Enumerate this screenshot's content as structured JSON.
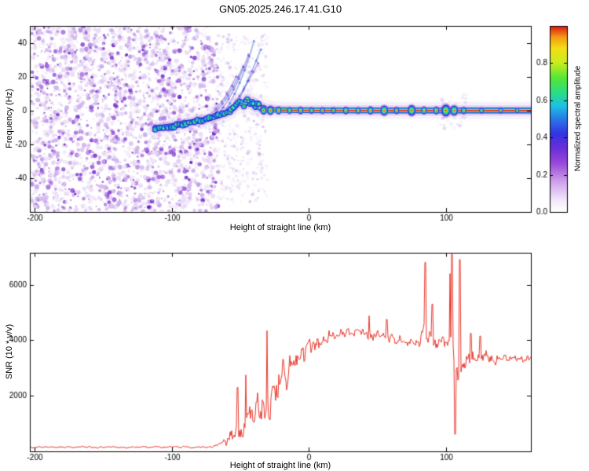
{
  "figure": {
    "title": "GN05.2025.246.17.41.G10",
    "background": "#ffffff"
  },
  "chart_data": [
    {
      "type": "heatmap",
      "title": "GN05.2025.246.17.41.G10",
      "xlabel": "Height of straight line (km)",
      "ylabel": "Frequency (Hz)",
      "xlim": [
        -203.5,
        162
      ],
      "ylim": [
        -60,
        50
      ],
      "xticks": [
        -200,
        -100,
        0,
        100
      ],
      "yticks": [
        -40,
        -20,
        0,
        20,
        40
      ],
      "colorbar": {
        "label": "Normalized spectral amplitude",
        "ticks": [
          "0.0",
          "0.2",
          "0.4",
          "0.6",
          "0.8"
        ],
        "tick_values": [
          0,
          0.2,
          0.4,
          0.6,
          0.8
        ],
        "range": [
          0,
          1
        ],
        "gradient": [
          [
            0,
            "#ffffff"
          ],
          [
            0.06,
            "#f3eaf9"
          ],
          [
            0.16,
            "#cfa3ec"
          ],
          [
            0.26,
            "#9a4ad9"
          ],
          [
            0.34,
            "#6b2fd9"
          ],
          [
            0.42,
            "#3333e2"
          ],
          [
            0.5,
            "#2879e8"
          ],
          [
            0.57,
            "#1cc2e2"
          ],
          [
            0.64,
            "#2add85"
          ],
          [
            0.72,
            "#55e636"
          ],
          [
            0.8,
            "#c8ee20"
          ],
          [
            0.88,
            "#f4de16"
          ],
          [
            0.94,
            "#f29a12"
          ],
          [
            1,
            "#e01212"
          ]
        ]
      },
      "noise_region": {
        "x_range": [
          -203.5,
          -66
        ],
        "y_range": [
          -60,
          50
        ],
        "count": 2800,
        "palette": [
          "#e8d9f5",
          "#c9a8ea",
          "#a166dd",
          "#7d2ed0",
          "#5e0fc0"
        ]
      },
      "sparse_region": {
        "x_range": [
          -66,
          -30
        ],
        "count": 420
      },
      "disturbance": {
        "x_range": [
          96,
          116
        ],
        "count": 70
      },
      "track": {
        "points": [
          [
            -112,
            -10.5
          ],
          [
            -105,
            -10
          ],
          [
            -98,
            -9
          ],
          [
            -92,
            -8
          ],
          [
            -86,
            -7
          ],
          [
            -80,
            -6
          ],
          [
            -74,
            -5
          ],
          [
            -68,
            -3.5
          ],
          [
            -62,
            -2
          ],
          [
            -57,
            0
          ],
          [
            -53,
            3
          ],
          [
            -50,
            6
          ],
          [
            -47,
            2
          ],
          [
            -45,
            8
          ],
          [
            -43,
            3
          ],
          [
            -41,
            6
          ],
          [
            -39,
            1
          ],
          [
            -37,
            4
          ],
          [
            -35,
            0.5
          ],
          [
            -33,
            2
          ],
          [
            -31,
            0
          ],
          [
            -28,
            1
          ],
          [
            -25,
            0
          ],
          [
            162,
            0
          ]
        ],
        "flat_from": -30
      },
      "arcs": [
        [
          [
            -76,
            -6
          ],
          [
            -62,
            4
          ],
          [
            -53,
            20
          ]
        ],
        [
          [
            -71,
            -4
          ],
          [
            -58,
            7
          ],
          [
            -48,
            26
          ]
        ],
        [
          [
            -66,
            -2
          ],
          [
            -54,
            10
          ],
          [
            -44,
            33
          ]
        ],
        [
          [
            -61,
            0
          ],
          [
            -50,
            13
          ],
          [
            -40,
            41
          ]
        ],
        [
          [
            -57,
            1
          ],
          [
            -47,
            12
          ],
          [
            -37,
            28
          ]
        ],
        [
          [
            -53,
            3
          ],
          [
            -45,
            16
          ],
          [
            -35,
            36
          ]
        ]
      ],
      "blobs": [
        [
          -33,
          2.6
        ],
        [
          -28,
          2.8
        ],
        [
          -22,
          2.4
        ],
        [
          -14,
          2.1
        ],
        [
          -6,
          2.3
        ],
        [
          2,
          2.0
        ],
        [
          10,
          2.1
        ],
        [
          18,
          2.0
        ],
        [
          27,
          2.3
        ],
        [
          36,
          2.1
        ],
        [
          45,
          2.5
        ],
        [
          55,
          3.2
        ],
        [
          64,
          2.2
        ],
        [
          75,
          3.4
        ],
        [
          84,
          2.4
        ],
        [
          93,
          2.4
        ],
        [
          100,
          3.8
        ],
        [
          106,
          3.2
        ],
        [
          113,
          2.2
        ],
        [
          126,
          1.9
        ],
        [
          140,
          1.9
        ],
        [
          152,
          1.7
        ]
      ]
    },
    {
      "type": "line",
      "xlabel": "Height of straight line (km)",
      "ylabel": "SNR (10 * v/v)",
      "xlim": [
        -203.5,
        162
      ],
      "ylim": [
        0,
        7150
      ],
      "xticks": [
        -200,
        -100,
        0,
        100
      ],
      "yticks": [
        2000,
        4000,
        6000
      ],
      "series": [
        {
          "name": "SNR",
          "color": "#e8392e",
          "envelope": [
            [
              -202,
              150,
              55
            ],
            [
              -120,
              150,
              55
            ],
            [
              -90,
              155,
              60
            ],
            [
              -75,
              165,
              70
            ],
            [
              -68,
              190,
              90
            ],
            [
              -64,
              240,
              140
            ],
            [
              -60,
              380,
              280
            ],
            [
              -57,
              520,
              450
            ],
            [
              -54,
              750,
              700
            ],
            [
              -52,
              650,
              450
            ],
            [
              -50,
              900,
              800
            ],
            [
              -48,
              800,
              500
            ],
            [
              -46,
              1150,
              900
            ],
            [
              -44,
              1000,
              600
            ],
            [
              -42,
              1400,
              900
            ],
            [
              -40,
              1250,
              700
            ],
            [
              -38,
              1550,
              850
            ],
            [
              -36,
              1400,
              700
            ],
            [
              -34,
              1750,
              950
            ],
            [
              -32,
              1900,
              1000
            ],
            [
              -30,
              2100,
              1200
            ],
            [
              -28,
              1900,
              900
            ],
            [
              -26,
              2200,
              1000
            ],
            [
              -24,
              2400,
              950
            ],
            [
              -22,
              2350,
              850
            ],
            [
              -20,
              2550,
              850
            ],
            [
              -18,
              2700,
              900
            ],
            [
              -16,
              2600,
              800
            ],
            [
              -14,
              2850,
              800
            ],
            [
              -12,
              3000,
              750
            ],
            [
              -10,
              3150,
              700
            ],
            [
              -8,
              3250,
              650
            ],
            [
              -6,
              3350,
              650
            ],
            [
              -4,
              3450,
              600
            ],
            [
              -2,
              3550,
              550
            ],
            [
              0,
              3650,
              520
            ],
            [
              3,
              3800,
              480
            ],
            [
              6,
              3900,
              450
            ],
            [
              10,
              4000,
              420
            ],
            [
              14,
              4100,
              400
            ],
            [
              18,
              4200,
              380
            ],
            [
              22,
              4250,
              380
            ],
            [
              26,
              4300,
              360
            ],
            [
              30,
              4320,
              340
            ],
            [
              34,
              4280,
              330
            ],
            [
              38,
              4300,
              340
            ],
            [
              42,
              4250,
              330
            ],
            [
              46,
              4200,
              320
            ],
            [
              50,
              4150,
              320
            ],
            [
              54,
              4100,
              310
            ],
            [
              58,
              4060,
              310
            ],
            [
              62,
              4020,
              300
            ],
            [
              66,
              3980,
              300
            ],
            [
              70,
              3950,
              300
            ],
            [
              74,
              3940,
              310
            ],
            [
              78,
              3980,
              330
            ],
            [
              82,
              4050,
              400
            ],
            [
              85,
              4150,
              500
            ],
            [
              88,
              4050,
              450
            ],
            [
              91,
              3950,
              430
            ],
            [
              94,
              3850,
              420
            ],
            [
              97,
              3900,
              430
            ],
            [
              100,
              4000,
              460
            ],
            [
              103,
              4080,
              500
            ],
            [
              105,
              3900,
              600
            ],
            [
              107,
              2900,
              900
            ],
            [
              109,
              2500,
              700
            ],
            [
              111,
              2900,
              550
            ],
            [
              113,
              3050,
              480
            ],
            [
              116,
              3200,
              420
            ],
            [
              120,
              3380,
              380
            ],
            [
              124,
              3480,
              360
            ],
            [
              128,
              3430,
              330
            ],
            [
              132,
              3380,
              320
            ],
            [
              136,
              3340,
              310
            ],
            [
              140,
              3310,
              300
            ],
            [
              144,
              3380,
              300
            ],
            [
              148,
              3300,
              290
            ],
            [
              152,
              3330,
              280
            ],
            [
              156,
              3310,
              270
            ],
            [
              160,
              3320,
              270
            ],
            [
              162,
              3320,
              270
            ]
          ],
          "spikes": [
            [
              -52,
              2300
            ],
            [
              -46,
              2750
            ],
            [
              -30.5,
              4350
            ],
            [
              44,
              4880
            ],
            [
              57,
              4750
            ],
            [
              85,
              6800
            ],
            [
              90,
              5300
            ],
            [
              103,
              6400
            ],
            [
              104.5,
              7400
            ],
            [
              106.8,
              620
            ],
            [
              110,
              6900
            ],
            [
              118,
              4250
            ],
            [
              125,
              4150
            ]
          ]
        }
      ]
    }
  ]
}
